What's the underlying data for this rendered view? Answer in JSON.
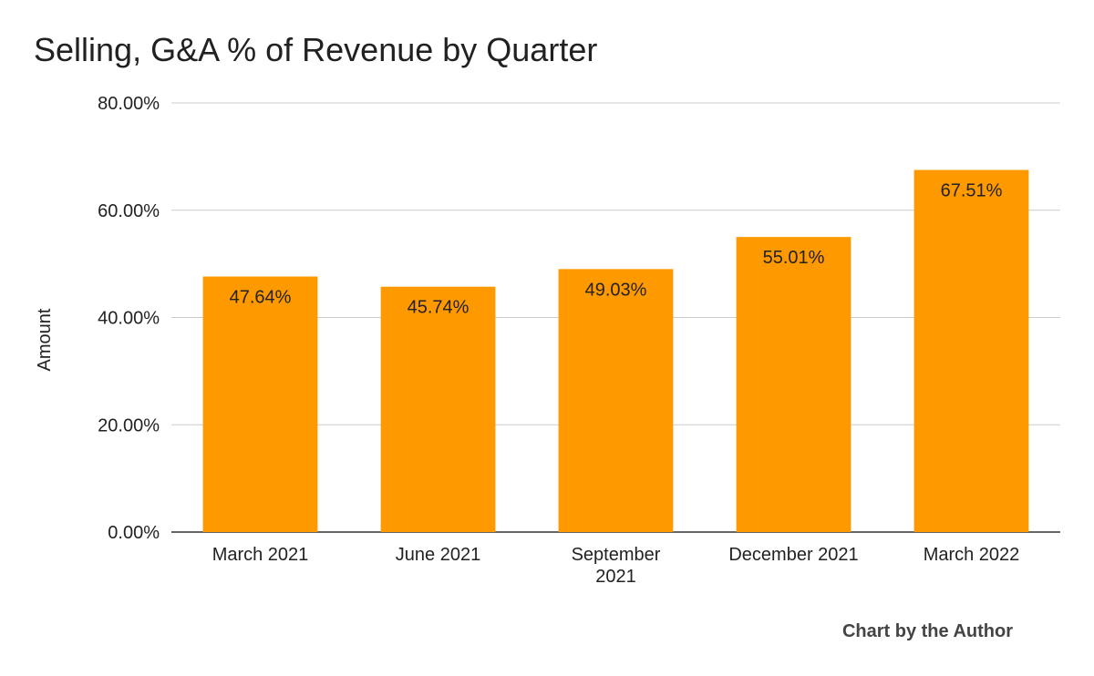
{
  "chart_data": {
    "type": "bar",
    "title": "Selling, G&A % of Revenue by Quarter",
    "xlabel": "",
    "ylabel": "Amount",
    "categories": [
      [
        "March 2021"
      ],
      [
        "June 2021"
      ],
      [
        "September",
        "2021"
      ],
      [
        "December 2021"
      ],
      [
        "March 2022"
      ]
    ],
    "values": [
      47.64,
      45.74,
      49.03,
      55.01,
      67.51
    ],
    "value_labels": [
      "47.64%",
      "45.74%",
      "49.03%",
      "55.01%",
      "67.51%"
    ],
    "ylim": [
      0,
      80
    ],
    "yticks": [
      0,
      20,
      40,
      60,
      80
    ],
    "ytick_labels": [
      "0.00%",
      "20.00%",
      "40.00%",
      "60.00%",
      "80.00%"
    ],
    "grid": true,
    "legend": "none",
    "bar_color": "#ff9900"
  },
  "footer": {
    "credit": "Chart by the Author"
  }
}
